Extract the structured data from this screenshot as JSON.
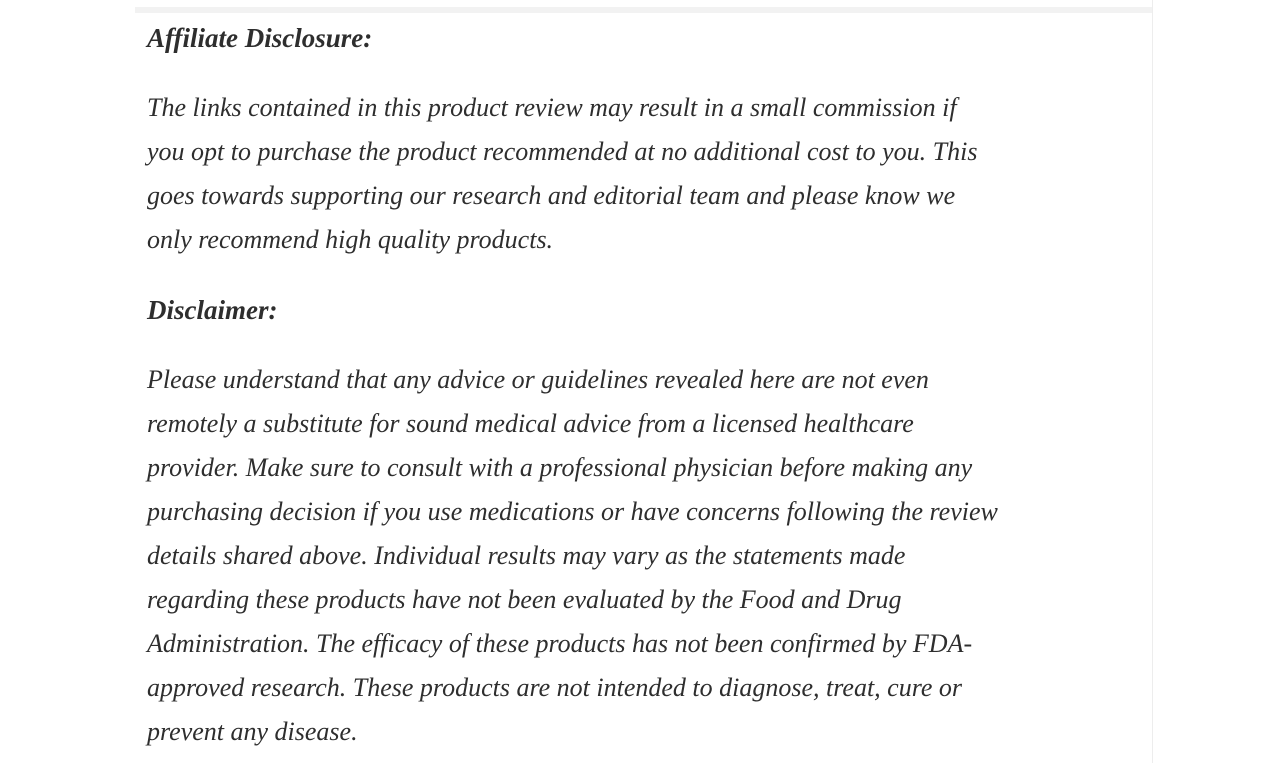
{
  "article": {
    "affiliate_heading": "Affiliate Disclosure:",
    "affiliate_paragraph": [
      "The links contained in this product review may result in a small commission if",
      "you opt to purchase the product recommended at no additional cost to you. This",
      "goes towards supporting our research and editorial team and please know we",
      "only recommend high quality products."
    ],
    "disclaimer_heading": "Disclaimer:",
    "disclaimer_paragraph": [
      "Please understand that any advice or guidelines revealed here are not even",
      "remotely a substitute for sound medical advice from a licensed healthcare",
      "provider. Make sure to consult with a professional physician before making any",
      "purchasing decision if you use medications or have concerns following the review",
      "details shared above. Individual results may vary as the statements made",
      "regarding these products have not been evaluated by the Food and Drug",
      "Administration. The efficacy of these products has not been confirmed by FDA-",
      "approved research. These products are not intended to diagnose, treat, cure or",
      "prevent any disease."
    ]
  },
  "colors": {
    "text": "#2e2e2e",
    "background": "#ffffff",
    "column_divider": "#ededed",
    "top_strip": "#f2f2f2"
  }
}
